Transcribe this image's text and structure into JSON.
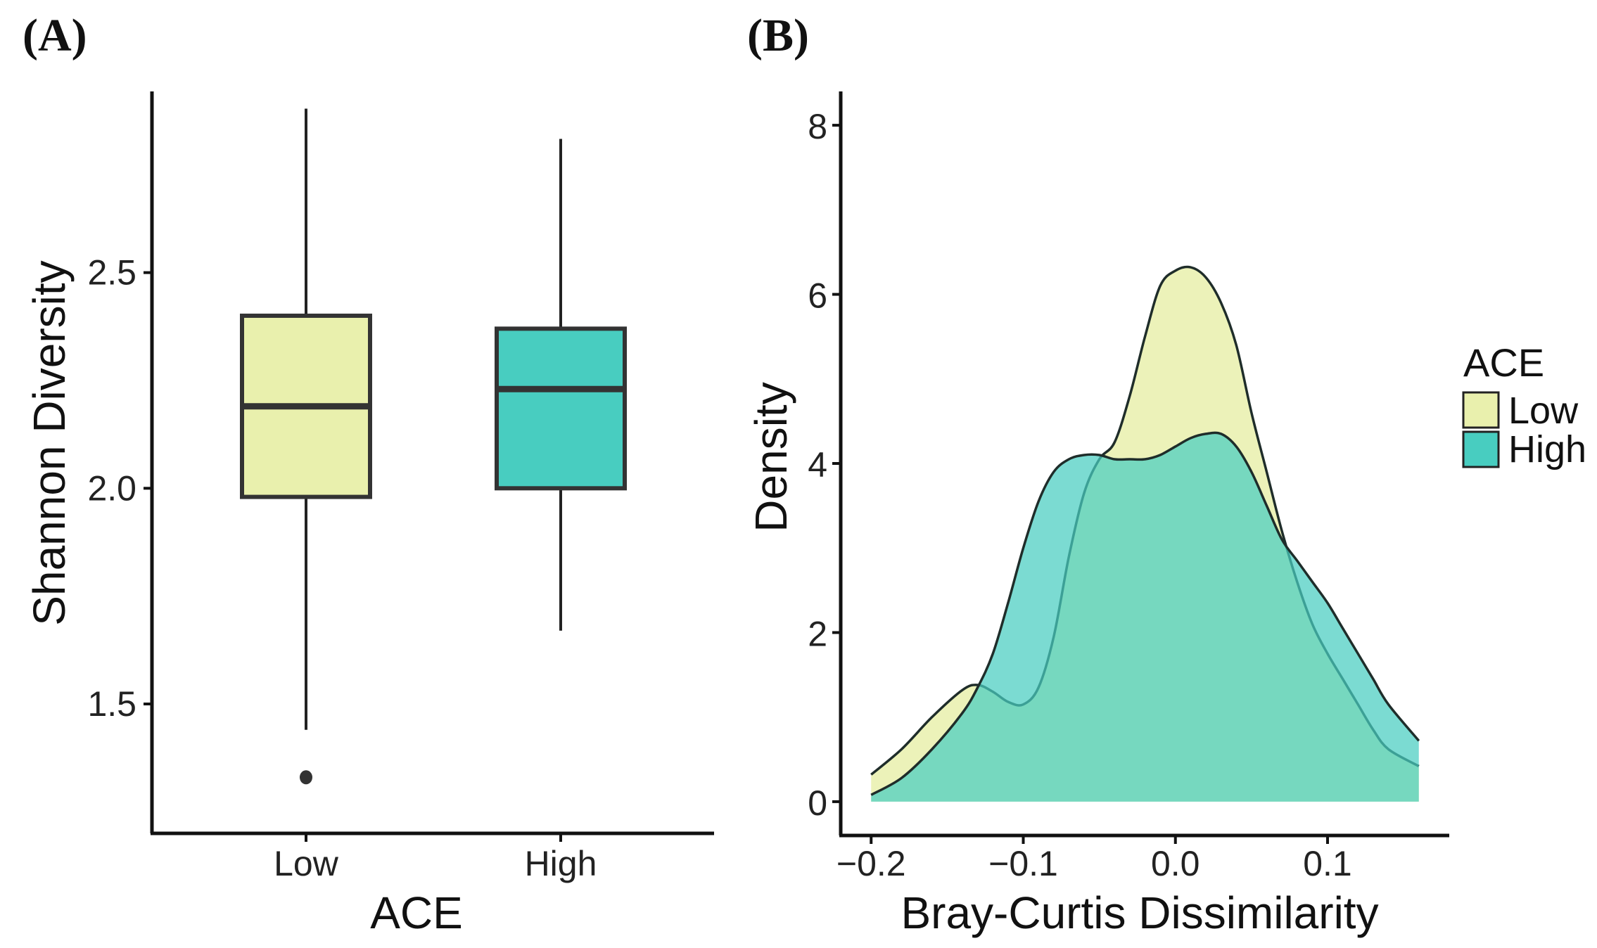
{
  "colors": {
    "low": "#e9f0ad",
    "high": "#48cdc0",
    "line": "#222222"
  },
  "chart_data": [
    {
      "panel_label": "(A)",
      "type": "box",
      "xlabel": "ACE",
      "ylabel": "Shannon Diversity",
      "categories": [
        "Low",
        "High"
      ],
      "ylim": [
        1.2,
        2.92
      ],
      "yticks": [
        1.5,
        2.0,
        2.5
      ],
      "ytick_labels": [
        "1.5",
        "2.0",
        "2.5"
      ],
      "boxes": [
        {
          "category": "Low",
          "whisker_low": 1.44,
          "q1": 1.98,
          "median": 2.19,
          "q3": 2.4,
          "whisker_high": 2.88,
          "outliers": [
            1.33
          ]
        },
        {
          "category": "High",
          "whisker_low": 1.67,
          "q1": 2.0,
          "median": 2.23,
          "q3": 2.37,
          "whisker_high": 2.81,
          "outliers": []
        }
      ]
    },
    {
      "panel_label": "(B)",
      "type": "area",
      "xlabel": "Bray-Curtis Dissimilarity",
      "ylabel": "Density",
      "xlim": [
        -0.22,
        0.18
      ],
      "ylim": [
        -0.4,
        8.4
      ],
      "xticks": [
        -0.2,
        -0.1,
        0.0,
        0.1
      ],
      "xtick_labels": [
        "−0.2",
        "−0.1",
        "0.0",
        "0.1"
      ],
      "yticks": [
        0,
        2,
        4,
        6,
        8
      ],
      "ytick_labels": [
        "0",
        "2",
        "4",
        "6",
        "8"
      ],
      "legend_title": "ACE",
      "legend_position": "right",
      "series": [
        {
          "name": "Low",
          "x": [
            -0.2,
            -0.18,
            -0.16,
            -0.14,
            -0.13,
            -0.12,
            -0.11,
            -0.1,
            -0.09,
            -0.08,
            -0.07,
            -0.06,
            -0.05,
            -0.04,
            -0.03,
            -0.02,
            -0.01,
            0.0,
            0.01,
            0.02,
            0.03,
            0.04,
            0.05,
            0.06,
            0.07,
            0.08,
            0.09,
            0.1,
            0.11,
            0.12,
            0.13,
            0.14,
            0.16
          ],
          "y": [
            0.32,
            0.62,
            1.0,
            1.32,
            1.38,
            1.3,
            1.18,
            1.15,
            1.35,
            1.95,
            2.9,
            3.65,
            4.05,
            4.25,
            4.8,
            5.5,
            6.1,
            6.28,
            6.32,
            6.2,
            5.9,
            5.4,
            4.6,
            3.9,
            3.2,
            2.6,
            2.1,
            1.75,
            1.45,
            1.15,
            0.85,
            0.62,
            0.42
          ]
        },
        {
          "name": "High",
          "x": [
            -0.2,
            -0.18,
            -0.16,
            -0.14,
            -0.13,
            -0.12,
            -0.11,
            -0.1,
            -0.09,
            -0.08,
            -0.07,
            -0.06,
            -0.05,
            -0.04,
            -0.03,
            -0.02,
            -0.01,
            0.0,
            0.01,
            0.02,
            0.03,
            0.04,
            0.05,
            0.06,
            0.07,
            0.08,
            0.09,
            0.1,
            0.11,
            0.12,
            0.13,
            0.14,
            0.16
          ],
          "y": [
            0.08,
            0.28,
            0.62,
            1.05,
            1.35,
            1.75,
            2.35,
            3.0,
            3.55,
            3.9,
            4.05,
            4.1,
            4.1,
            4.05,
            4.05,
            4.05,
            4.1,
            4.2,
            4.3,
            4.35,
            4.35,
            4.2,
            3.9,
            3.5,
            3.1,
            2.85,
            2.6,
            2.35,
            2.05,
            1.75,
            1.45,
            1.15,
            0.72
          ]
        }
      ]
    }
  ]
}
